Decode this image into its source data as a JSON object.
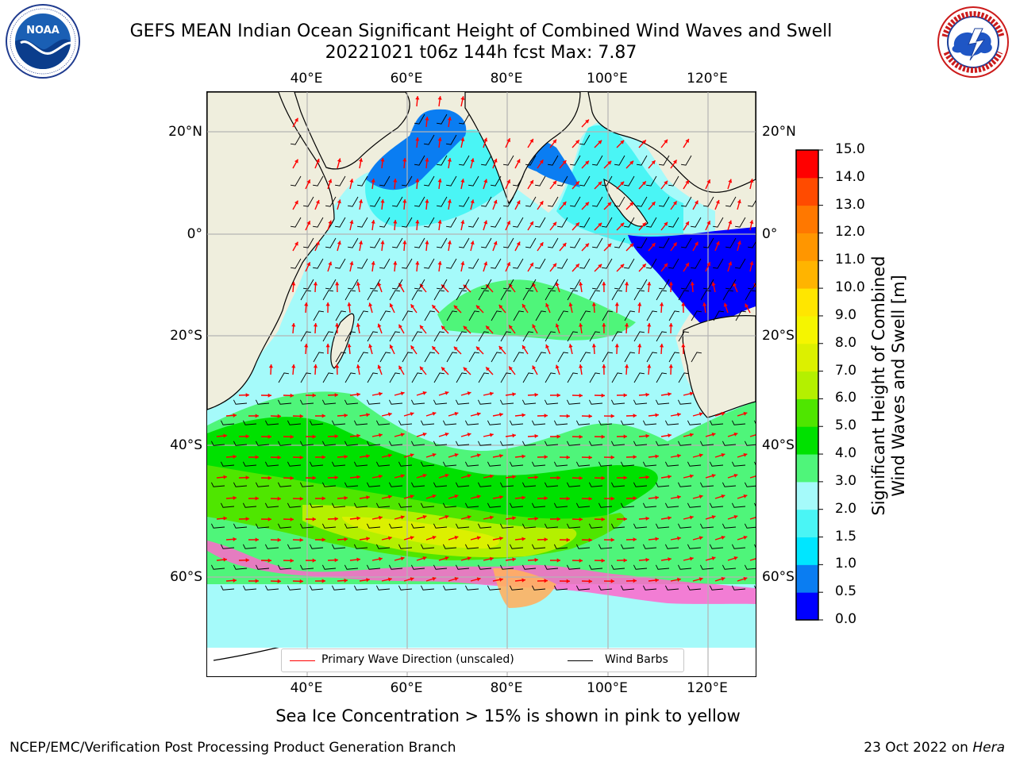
{
  "title": {
    "line1": "GEFS MEAN Indian Ocean Significant Height of Combined Wind Waves and Swell",
    "line2": "20221021 t06z 144h fcst   Max: 7.87"
  },
  "logos": {
    "noaa": {
      "text": "NOAA",
      "ring": "NATIONAL OCEANIC AND ATMOSPHERIC ADMINISTRATION · U.S. DEPARTMENT OF COMMERCE"
    },
    "nws": {
      "ring": "NATIONAL WEATHER SERVICE"
    }
  },
  "map": {
    "lon_ticks": [
      "40°E",
      "60°E",
      "80°E",
      "100°E",
      "120°E"
    ],
    "lat_ticks": [
      "20°N",
      "0°",
      "20°S",
      "40°S",
      "60°S"
    ]
  },
  "legend": {
    "wave_label": "Primary Wave Direction (unscaled)",
    "wind_label": "Wind Barbs",
    "wave_color": "#ff0000",
    "wind_color": "#000000"
  },
  "colorbar": {
    "label": "Significant Height of Combined Wind Waves and Swell [m]",
    "ticks": [
      "0.0",
      "0.5",
      "1.0",
      "1.5",
      "2.0",
      "3.0",
      "4.0",
      "5.0",
      "6.0",
      "7.0",
      "8.0",
      "9.0",
      "10.0",
      "11.0",
      "12.0",
      "13.0",
      "14.0",
      "15.0"
    ],
    "colors": [
      "#0000ff",
      "#0a7df2",
      "#00e6ff",
      "#4af5f5",
      "#a5fafa",
      "#4ff57a",
      "#00e100",
      "#4fe600",
      "#b4f000",
      "#dcf000",
      "#f5f500",
      "#ffe600",
      "#ffb400",
      "#ff9600",
      "#ff7800",
      "#ff4b00",
      "#ff0000"
    ]
  },
  "note": "Sea Ice Concentration > 15% is shown in pink to yellow",
  "footer": {
    "left": "NCEP/EMC/Verification Post Processing Product Generation Branch",
    "date": "23 Oct 2022 on",
    "machine": "Hera"
  }
}
